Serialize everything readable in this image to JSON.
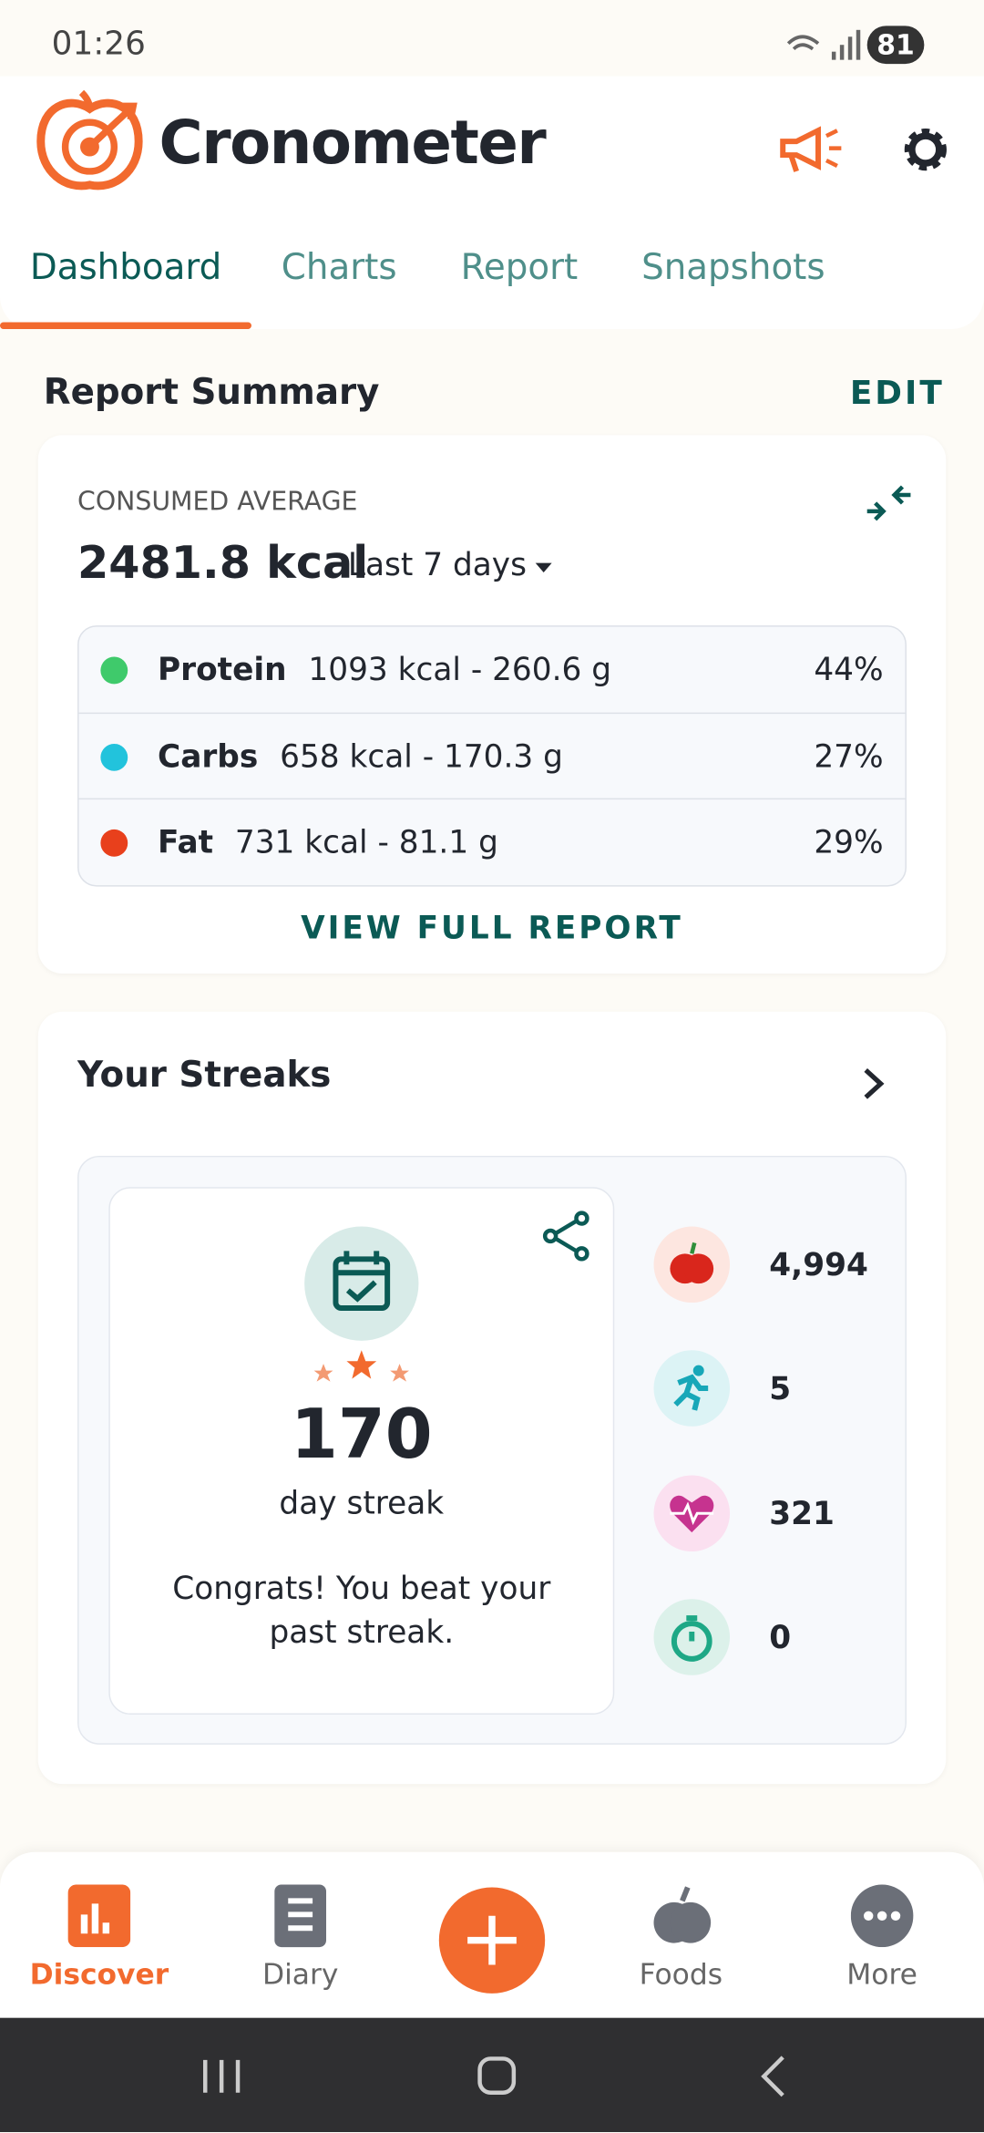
{
  "status_bar": {
    "time": "01:26",
    "battery": "81"
  },
  "header": {
    "app_name": "Cronometer",
    "tabs": [
      "Dashboard",
      "Charts",
      "Report",
      "Snapshots"
    ]
  },
  "report_summary": {
    "title": "Report Summary",
    "edit": "EDIT",
    "label": "CONSUMED AVERAGE",
    "total": "2481.8 kcal",
    "period": "Last 7 days",
    "macros": [
      {
        "name": "Protein",
        "detail": "1093 kcal - 260.6 g",
        "percent": "44%"
      },
      {
        "name": "Carbs",
        "detail": "658 kcal - 170.3 g",
        "percent": "27%"
      },
      {
        "name": "Fat",
        "detail": "731 kcal - 81.1 g",
        "percent": "29%"
      }
    ],
    "link": "VIEW FULL REPORT"
  },
  "streaks": {
    "title": "Your Streaks",
    "count": "170",
    "unit": "day streak",
    "message": "Congrats! You beat your past streak.",
    "stats": [
      "4,994",
      "5",
      "321",
      "0"
    ]
  },
  "bottom_nav": [
    "Discover",
    "Diary",
    "Foods",
    "More"
  ]
}
